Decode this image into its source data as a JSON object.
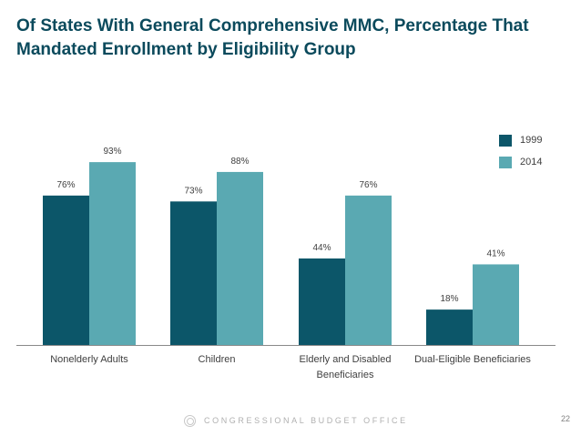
{
  "title": {
    "line1": "Of States With General Comprehensive MMC, Percentage That",
    "line2": "Mandated Enrollment by Eligibility Group"
  },
  "chart_data": {
    "type": "bar",
    "title": "Of States With General Comprehensive MMC, Percentage That Mandated Enrollment by Eligibility Group",
    "categories": [
      [
        "Nonelderly Adults"
      ],
      [
        "Children"
      ],
      [
        "Elderly and Disabled",
        "Beneficiaries"
      ],
      [
        "Dual-Eligible Beneficiaries"
      ]
    ],
    "series": [
      {
        "name": "1999",
        "color": "#0c5669",
        "values": [
          76,
          73,
          44,
          18
        ],
        "labels": [
          "76%",
          "73%",
          "44%",
          "18%"
        ]
      },
      {
        "name": "2014",
        "color": "#5aa9b2",
        "values": [
          93,
          88,
          76,
          41
        ],
        "labels": [
          "93%",
          "88%",
          "76%",
          "41%"
        ]
      }
    ],
    "ylim": [
      0,
      100
    ],
    "grid": false,
    "legend": "top-right",
    "xlabel": "",
    "ylabel": ""
  },
  "legend": {
    "items": [
      {
        "label": "1999",
        "color": "#0c5669"
      },
      {
        "label": "2014",
        "color": "#5aa9b2"
      }
    ]
  },
  "footer": {
    "org": "CONGRESSIONAL BUDGET OFFICE",
    "page": "22"
  }
}
